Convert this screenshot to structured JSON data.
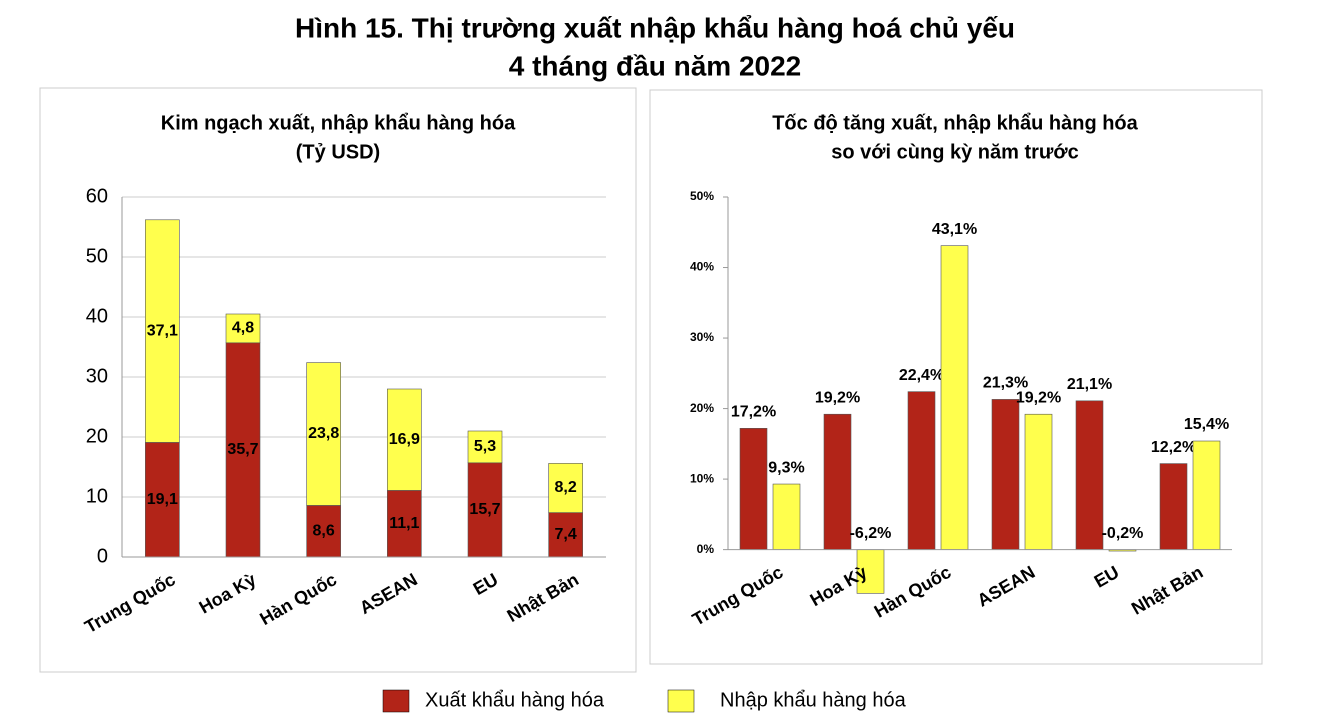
{
  "title": "Hình 15. Thị trường xuất nhập khẩu hàng hoá chủ yếu",
  "subtitle": "4 tháng đầu năm 2022",
  "chart_data": [
    {
      "type": "bar",
      "stacked": true,
      "title": "Kim ngạch xuất, nhập khẩu hàng hóa",
      "subtitle": "(Tỷ USD)",
      "categories": [
        "Trung Quốc",
        "Hoa Kỳ",
        "Hàn Quốc",
        "ASEAN",
        "EU",
        "Nhật Bản"
      ],
      "series": [
        {
          "name": "Xuất khẩu hàng hóa",
          "color": "#b22418",
          "values": [
            19.1,
            35.7,
            8.6,
            11.1,
            15.7,
            7.4
          ],
          "value_labels": [
            "19,1",
            "35,7",
            "8,6",
            "11,1",
            "15,7",
            "7,4"
          ]
        },
        {
          "name": "Nhập khẩu hàng hóa",
          "color": "#ffff4d",
          "values": [
            37.1,
            4.8,
            23.8,
            16.9,
            5.3,
            8.2
          ],
          "value_labels": [
            "37,1",
            "4,8",
            "23,8",
            "16,9",
            "5,3",
            "8,2"
          ]
        }
      ],
      "ylim": [
        0,
        60
      ],
      "yticks": [
        0,
        10,
        20,
        30,
        40,
        50,
        60
      ],
      "grid": true
    },
    {
      "type": "bar",
      "stacked": false,
      "title": "Tốc độ tăng xuất, nhập khẩu hàng hóa",
      "subtitle": "so với cùng kỳ năm trước",
      "categories": [
        "Trung Quốc",
        "Hoa Kỳ",
        "Hàn Quốc",
        "ASEAN",
        "EU",
        "Nhật Bản"
      ],
      "series": [
        {
          "color": "#b22418",
          "values": [
            17.2,
            19.2,
            22.4,
            21.3,
            21.1,
            12.2
          ],
          "value_labels": [
            "17,2%",
            "19,2%",
            "22,4%",
            "21,3%",
            "21,1%",
            "12,2%"
          ]
        },
        {
          "color": "#ffff4d",
          "values": [
            9.3,
            -6.2,
            43.1,
            19.2,
            -0.2,
            15.4
          ],
          "value_labels": [
            "9,3%",
            "-6,2%",
            "43,1%",
            "19,2%",
            "-0,2%",
            "15,4%"
          ]
        }
      ],
      "ylim": [
        -7,
        50
      ],
      "yticks": [
        {
          "value": 0,
          "label": "0%"
        },
        {
          "value": 10,
          "label": "10%"
        },
        {
          "value": 20,
          "label": "20%"
        },
        {
          "value": 30,
          "label": "30%"
        },
        {
          "value": 40,
          "label": "40%"
        },
        {
          "value": 50,
          "label": "50%"
        }
      ],
      "grid": false
    }
  ]
}
